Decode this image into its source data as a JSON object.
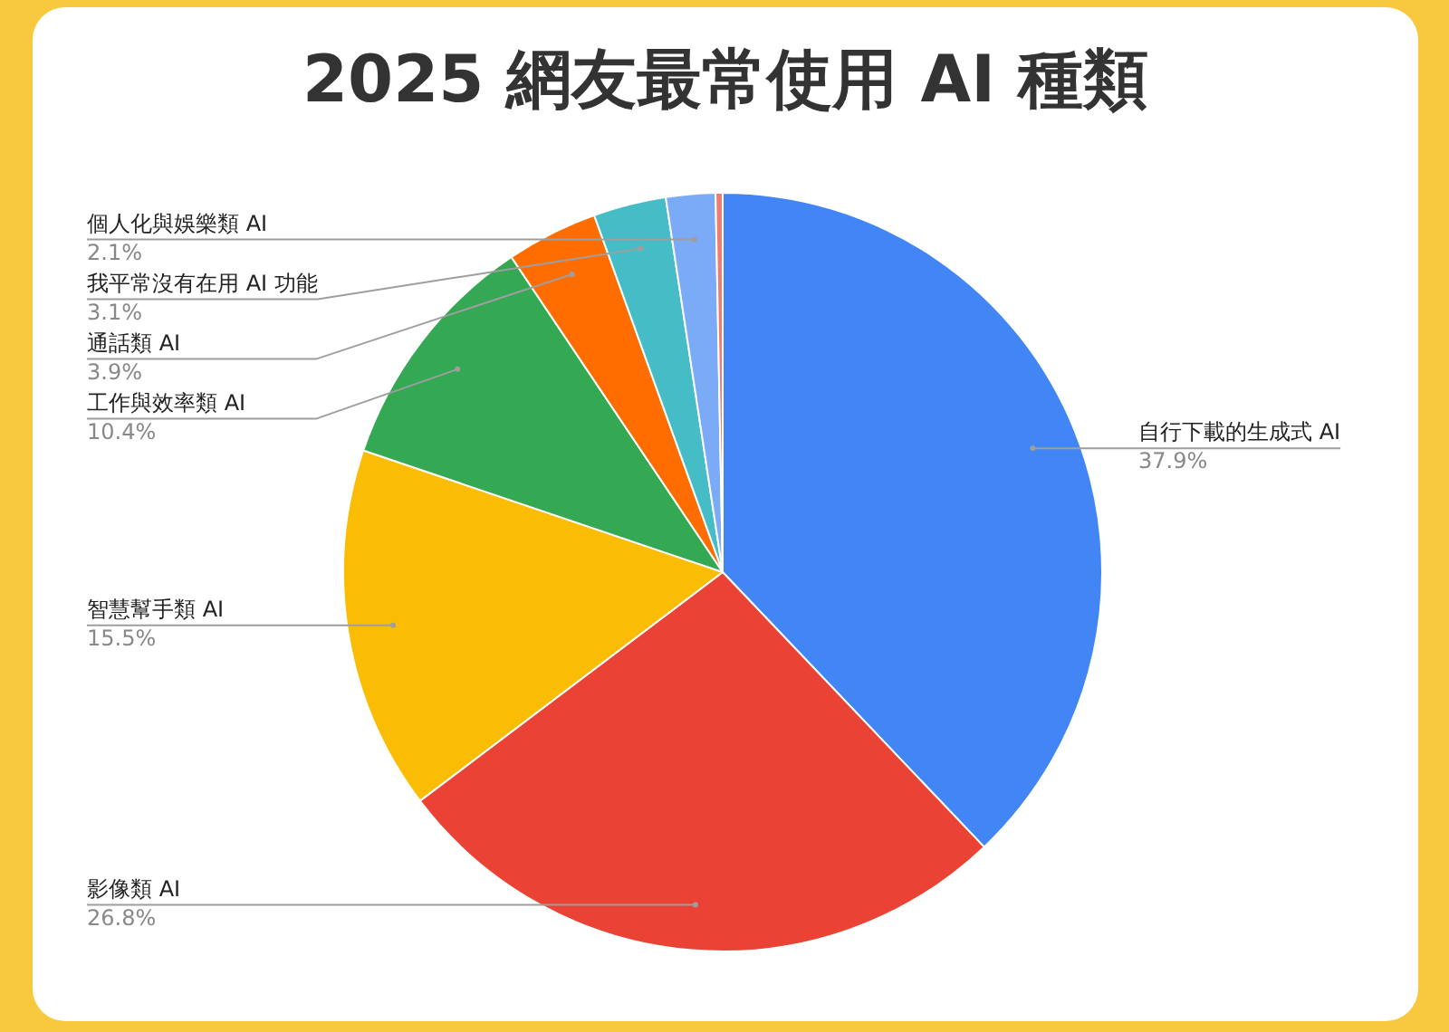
{
  "chart_data": {
    "type": "pie",
    "title": "2025 網友最常使用 AI 種類",
    "categories": [
      "自行下載的生成式 AI",
      "影像類 AI",
      "智慧幫手類 AI",
      "工作與效率類 AI",
      "通話類 AI",
      "我平常沒有在用 AI 功能",
      "個人化與娛樂類 AI",
      null
    ],
    "values": [
      37.9,
      26.8,
      15.5,
      10.4,
      3.9,
      3.1,
      2.1,
      0.3
    ],
    "value_labels": [
      "37.9%",
      "26.8%",
      "15.5%",
      "10.4%",
      "3.9%",
      "3.1%",
      "2.1%",
      null
    ],
    "colors": [
      "#4285f4",
      "#ea4335",
      "#fbbc04",
      "#34a853",
      "#ff6d01",
      "#46bdc6",
      "#7baaf7",
      "#f07b72"
    ],
    "legend": false
  }
}
